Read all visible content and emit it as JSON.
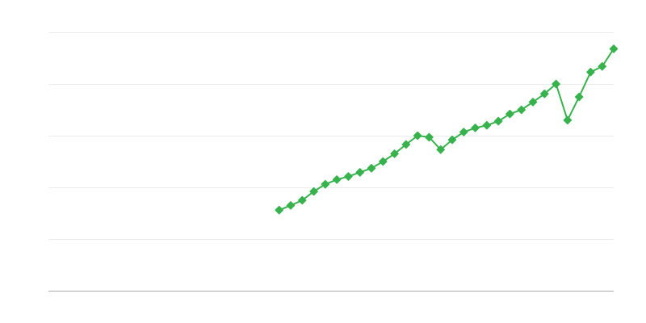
{
  "chart_data": {
    "type": "line",
    "title": "",
    "xlabel": "",
    "ylabel": "",
    "grid": true,
    "legend": "none",
    "x_slots": 50,
    "ylim": [
      0,
      5
    ],
    "y_gridlines": [
      0,
      1,
      2,
      3,
      4,
      5
    ],
    "x": [
      20,
      21,
      22,
      23,
      24,
      25,
      26,
      27,
      28,
      29,
      30,
      31,
      32,
      33,
      34,
      35,
      36,
      37,
      38,
      39,
      40,
      41,
      42,
      43,
      44,
      45,
      46,
      47,
      48,
      49
    ],
    "series": [
      {
        "color": "#37b24d",
        "marker": "diamond",
        "values": [
          1.56,
          1.65,
          1.75,
          1.92,
          2.06,
          2.15,
          2.21,
          2.29,
          2.37,
          2.5,
          2.65,
          2.83,
          3.0,
          2.97,
          2.73,
          2.92,
          3.07,
          3.15,
          3.2,
          3.28,
          3.42,
          3.5,
          3.65,
          3.81,
          4.0,
          3.3,
          3.75,
          4.23,
          4.34,
          4.68
        ]
      }
    ],
    "colors": {
      "grid": "#ebebeb",
      "axis": "#aaaaaa"
    }
  }
}
